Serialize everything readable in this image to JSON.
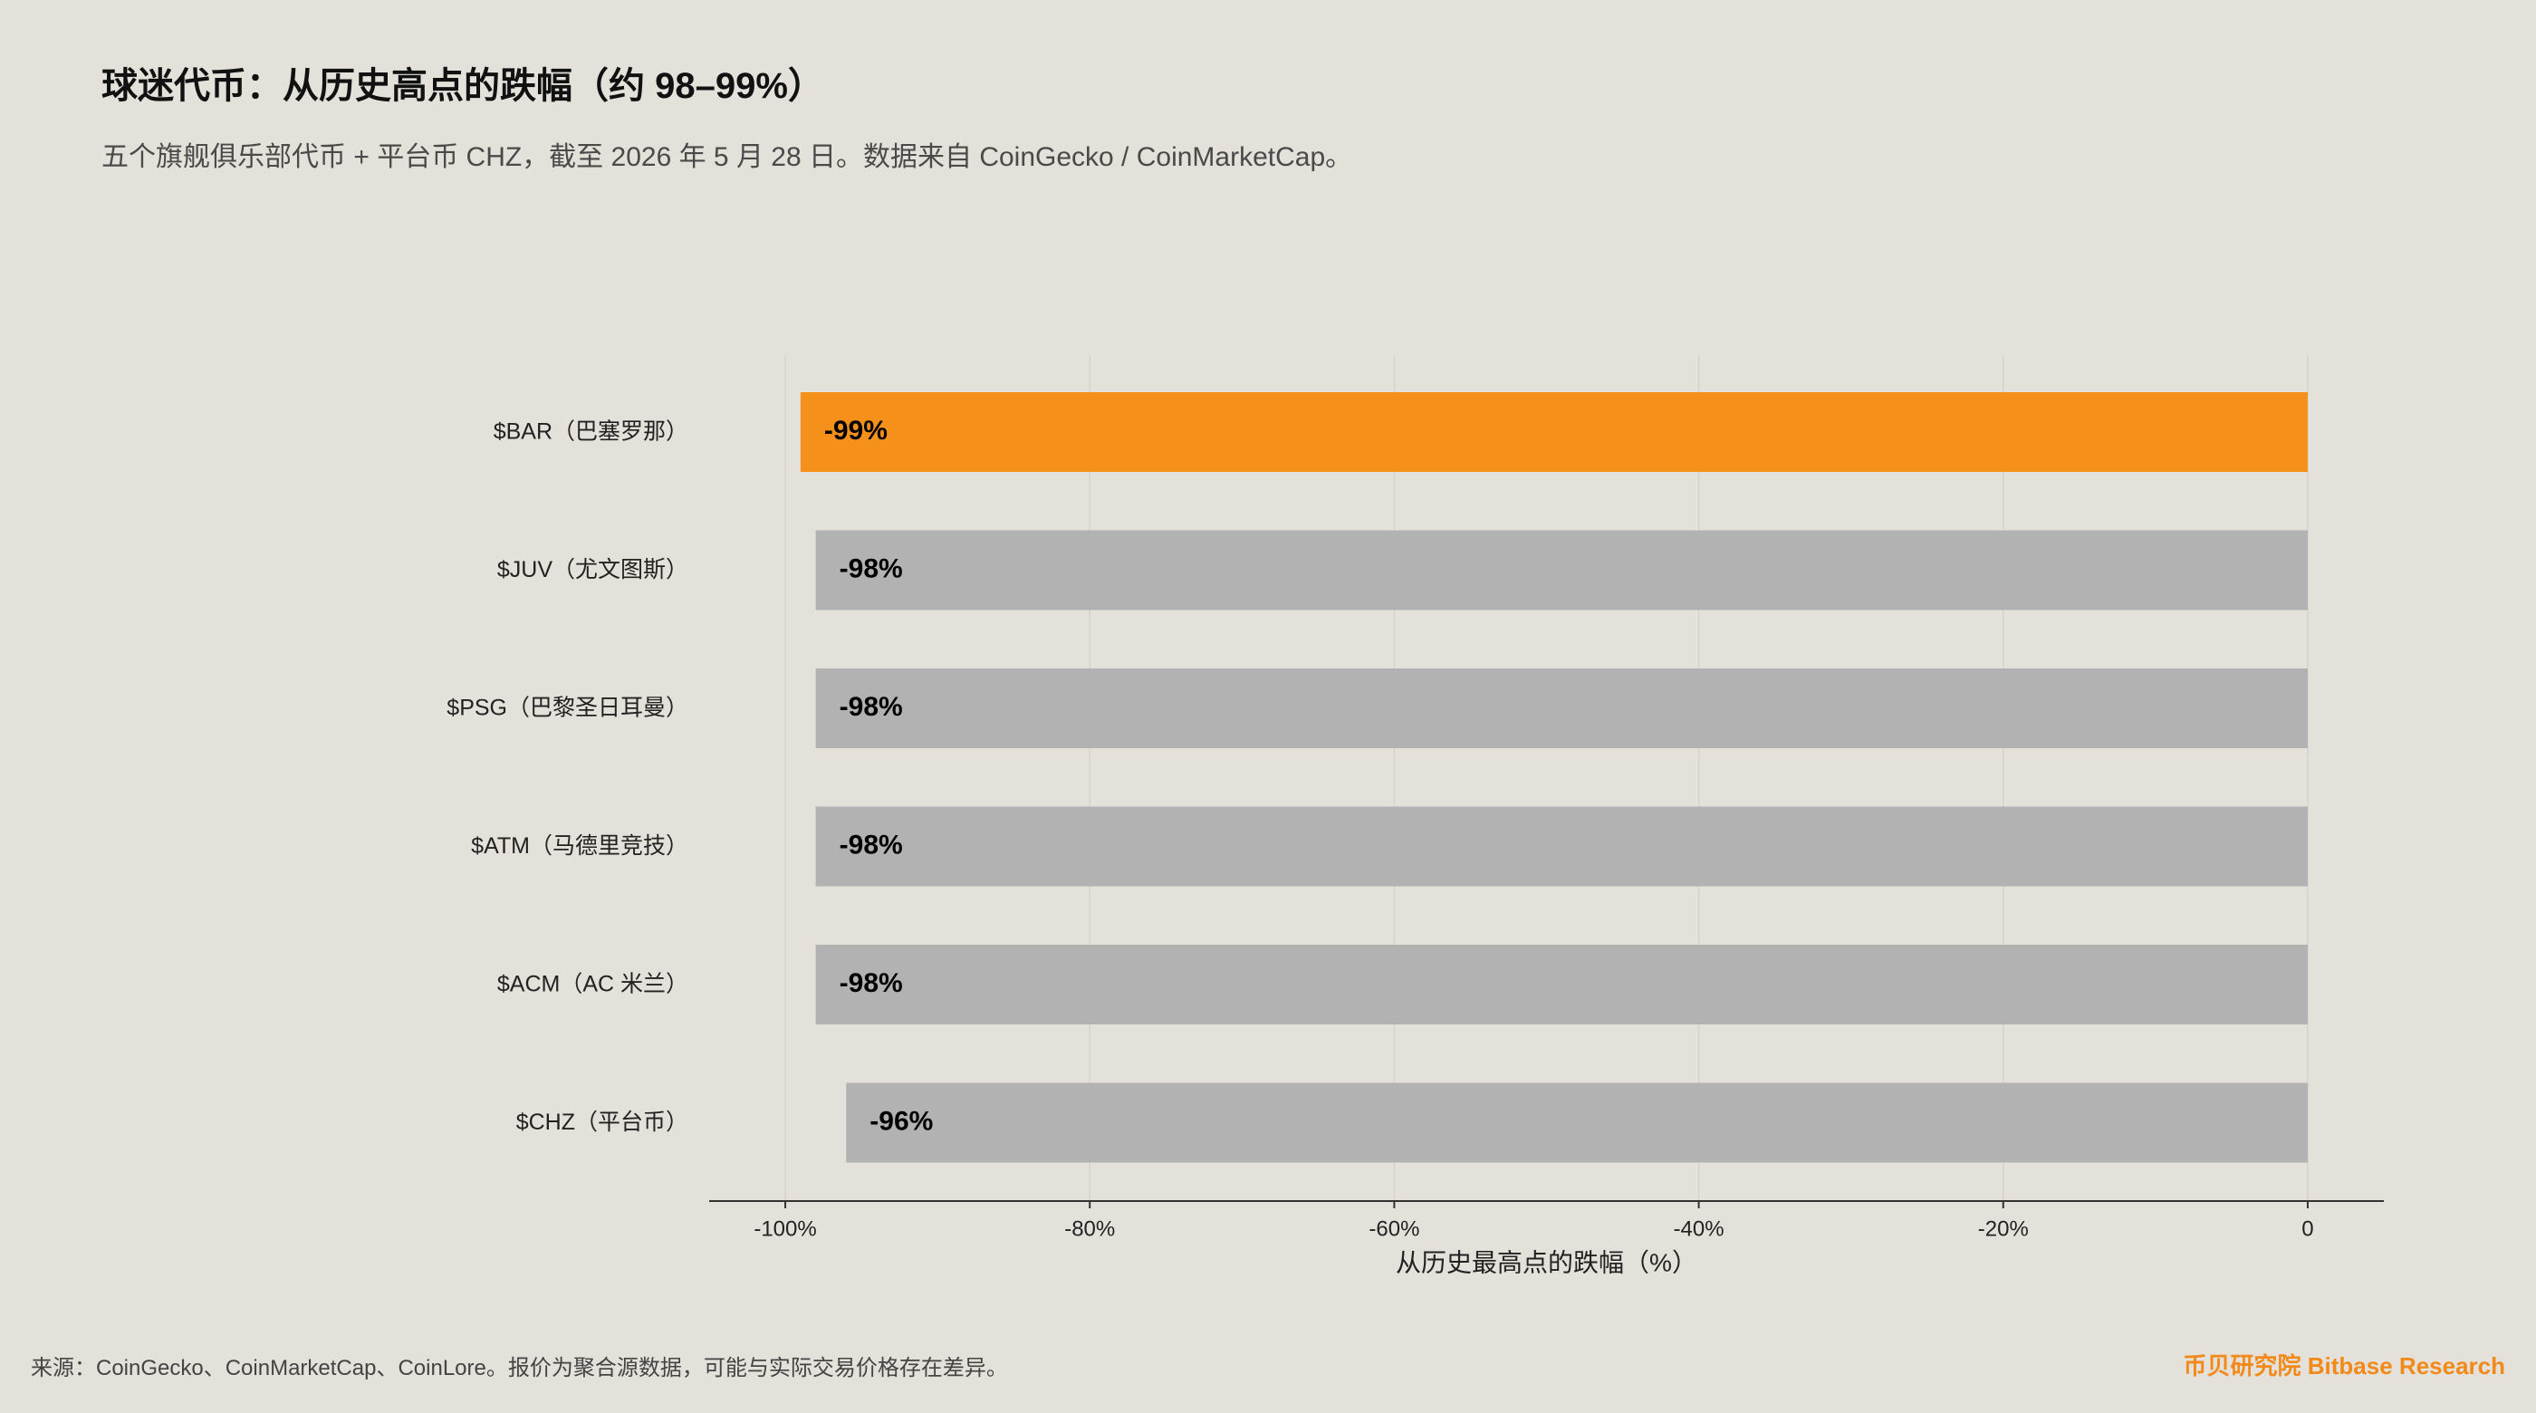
{
  "header": {
    "title": "球迷代币：从历史高点的跌幅（约 98–99%）",
    "subtitle": "五个旗舰俱乐部代币 + 平台币 CHZ，截至 2026 年 5 月 28 日。数据来自 CoinGecko / CoinMarketCap。"
  },
  "footer": {
    "source": "来源：CoinGecko、CoinMarketCap、CoinLore。报价为聚合源数据，可能与实际交易价格存在差异。",
    "brand": "币贝研究院 Bitbase Research"
  },
  "colors": {
    "highlight": "#f5901a",
    "bar": "#b2b2b2",
    "grid": "#d6d2cc",
    "axis": "#333333",
    "background": "#e4e0da"
  },
  "chart_data": {
    "type": "bar",
    "orientation": "horizontal",
    "categories": [
      "$BAR（巴塞罗那）",
      "$JUV（尤文图斯）",
      "$PSG（巴黎圣日耳曼）",
      "$ATM（马德里竞技）",
      "$ACM（AC 米兰）",
      "$CHZ（平台币）"
    ],
    "values": [
      -99,
      -98,
      -98,
      -98,
      -98,
      -96
    ],
    "value_labels": [
      "-99%",
      "-98%",
      "-98%",
      "-98%",
      "-98%",
      "-96%"
    ],
    "highlight_index": 0,
    "xlabel": "从历史最高点的跌幅（%）",
    "xlim": [
      -105,
      5
    ],
    "xticks": [
      -100,
      -80,
      -60,
      -40,
      -20,
      0
    ],
    "xtick_labels": [
      "-100%",
      "-80%",
      "-60%",
      "-40%",
      "-20%",
      "0"
    ],
    "grid": "vertical"
  }
}
